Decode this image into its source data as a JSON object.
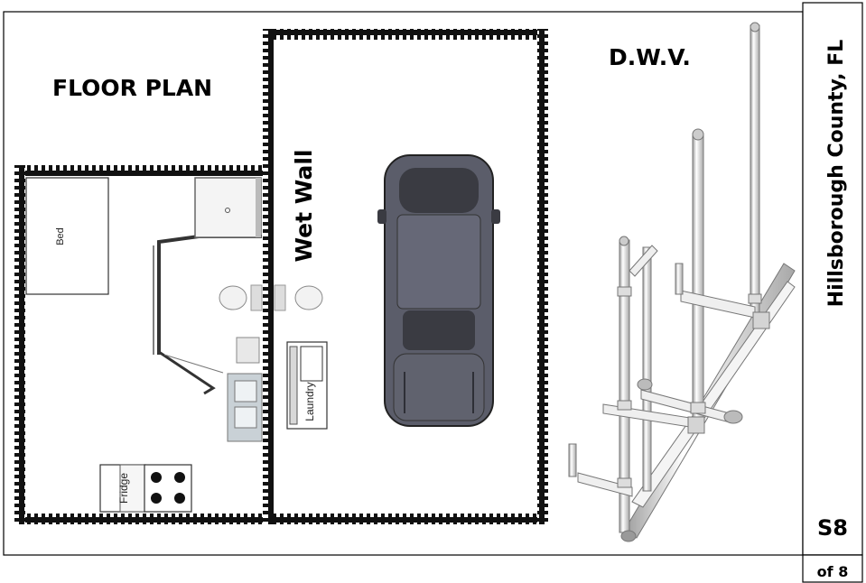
{
  "sheet": {
    "section_title": "FLOOR PLAN",
    "dwv_title": "D.W.V.",
    "location": "Hillsborough County, FL",
    "sheet_number": "S8",
    "sheet_total": "of 8"
  },
  "floor_plan": {
    "wet_wall_label": "Wet Wall",
    "bed_label": "Bed",
    "fridge_label": "Fridge",
    "laundry_label": "Laundry"
  },
  "colors": {
    "wall": "#111111",
    "car_body": "#5b5d6a",
    "car_glass": "#3a3b42",
    "pipe": "#e6e6e6",
    "fixture": "#c8c8c8"
  }
}
